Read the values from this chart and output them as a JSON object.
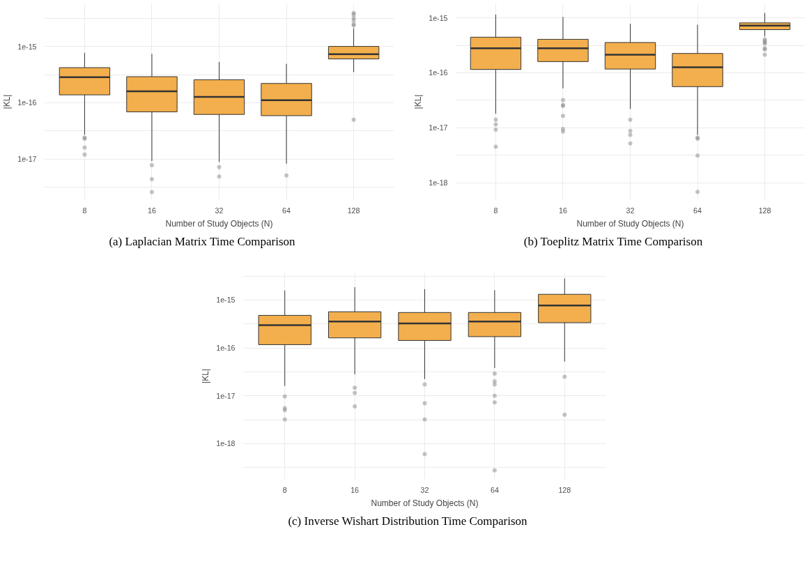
{
  "chart_data": [
    {
      "type": "box",
      "categories": [
        "8",
        "16",
        "32",
        "64",
        "128"
      ],
      "xlabel": "Number of Study Objects (N)",
      "ylabel": "|KL|",
      "color": "#f3af4d",
      "log": true,
      "grid": true,
      "ylim": [
        1.9e-18,
        5.7e-15
      ],
      "yticks": [
        {
          "value": 3.16e-18,
          "label": null
        },
        {
          "value": 1e-17,
          "label": "1e-17"
        },
        {
          "value": 3.16e-17,
          "label": null
        },
        {
          "value": 1e-16,
          "label": "1e-16"
        },
        {
          "value": 3.16e-16,
          "label": null
        },
        {
          "value": 1e-15,
          "label": "1e-15"
        },
        {
          "value": 3.16e-15,
          "label": null
        }
      ],
      "boxes": [
        {
          "low": 2.7e-17,
          "q1": 1.38e-16,
          "median": 2.85e-16,
          "q3": 4.2e-16,
          "high": 7.7e-16,
          "outliers": [
            2.4e-17,
            2.3e-17,
            1.6e-17,
            1.2e-17
          ]
        },
        {
          "low": 9.2e-18,
          "q1": 6.9e-17,
          "median": 1.6e-16,
          "q3": 2.9e-16,
          "high": 7.4e-16,
          "outliers": [
            7.8e-18,
            4.4e-18,
            2.6e-18
          ]
        },
        {
          "low": 8.9e-18,
          "q1": 6.2e-17,
          "median": 1.27e-16,
          "q3": 2.56e-16,
          "high": 5.3e-16,
          "outliers": [
            7.2e-18,
            4.9e-18
          ]
        },
        {
          "low": 8.3e-18,
          "q1": 5.9e-17,
          "median": 1.11e-16,
          "q3": 2.2e-16,
          "high": 4.9e-16,
          "outliers": [
            5.1e-18
          ]
        },
        {
          "low": 3.5e-16,
          "q1": 6e-16,
          "median": 7.3e-16,
          "q3": 1e-15,
          "high": 2.1e-15,
          "outliers": [
            3.9e-15,
            3.7e-15,
            3.2e-15,
            2.9e-15,
            2.5e-15,
            2.35e-15,
            5e-17
          ]
        }
      ],
      "annotations": [
        "(a) Laplacian Matrix Time Comparison"
      ]
    },
    {
      "type": "box",
      "categories": [
        "8",
        "16",
        "32",
        "64",
        "128"
      ],
      "xlabel": "Number of Study Objects (N)",
      "ylabel": "|KL|",
      "color": "#f3af4d",
      "log": true,
      "grid": true,
      "ylim": [
        4.9e-19,
        1.8e-15
      ],
      "yticks": [
        {
          "value": 1e-18,
          "label": "1e-18"
        },
        {
          "value": 3.16e-18,
          "label": null
        },
        {
          "value": 1e-17,
          "label": "1e-17"
        },
        {
          "value": 3.16e-17,
          "label": null
        },
        {
          "value": 1e-16,
          "label": "1e-16"
        },
        {
          "value": 3.16e-16,
          "label": null
        },
        {
          "value": 1e-15,
          "label": "1e-15"
        }
      ],
      "boxes": [
        {
          "low": 1.8e-17,
          "q1": 1.15e-16,
          "median": 2.8e-16,
          "q3": 4.45e-16,
          "high": 1.15e-15,
          "outliers": [
            1.4e-17,
            1.15e-17,
            9.2e-18,
            4.5e-18
          ]
        },
        {
          "low": 5.2e-17,
          "q1": 1.6e-16,
          "median": 2.79e-16,
          "q3": 4.07e-16,
          "high": 1.04e-15,
          "outliers": [
            3.2e-17,
            2.6e-17,
            2.5e-17,
            1.64e-17,
            9.5e-18,
            8.5e-18
          ]
        },
        {
          "low": 2.2e-17,
          "q1": 1.17e-16,
          "median": 2.14e-16,
          "q3": 3.56e-16,
          "high": 7.8e-16,
          "outliers": [
            1.4e-17,
            8.8e-18,
            7.4e-18,
            5.2e-18
          ]
        },
        {
          "low": 7.4e-18,
          "q1": 5.6e-17,
          "median": 1.26e-16,
          "q3": 2.25e-16,
          "high": 7.5e-16,
          "outliers": [
            6.6e-18,
            6.3e-18,
            3.1e-18,
            6.8e-19
          ]
        },
        {
          "low": 4.6e-16,
          "q1": 6.1e-16,
          "median": 7.25e-16,
          "q3": 8.1e-16,
          "high": 1.23e-15,
          "outliers": [
            4.07e-16,
            3.8e-16,
            3.56e-16,
            3.4e-16,
            2.8e-16,
            2.65e-16,
            2.14e-16
          ]
        }
      ],
      "annotations": [
        "(b) Toeplitz Matrix Time Comparison"
      ]
    },
    {
      "type": "box",
      "categories": [
        "8",
        "16",
        "32",
        "64",
        "128"
      ],
      "xlabel": "Number of Study Objects (N)",
      "ylabel": "|KL|",
      "color": "#f3af4d",
      "log": true,
      "grid": true,
      "ylim": [
        1.8e-19,
        3.7e-15
      ],
      "yticks": [
        {
          "value": 3.16e-19,
          "label": null
        },
        {
          "value": 1e-18,
          "label": "1e-18"
        },
        {
          "value": 3.16e-18,
          "label": null
        },
        {
          "value": 1e-17,
          "label": "1e-17"
        },
        {
          "value": 3.16e-17,
          "label": null
        },
        {
          "value": 1e-16,
          "label": "1e-16"
        },
        {
          "value": 3.16e-16,
          "label": null
        },
        {
          "value": 1e-15,
          "label": "1e-15"
        },
        {
          "value": 3.16e-15,
          "label": null
        }
      ],
      "boxes": [
        {
          "low": 1.6e-17,
          "q1": 1.17e-16,
          "median": 2.98e-16,
          "q3": 4.79e-16,
          "high": 1.59e-15,
          "outliers": [
            9.7e-18,
            5.5e-18,
            5e-18,
            3.2e-18
          ]
        },
        {
          "low": 2.8e-17,
          "q1": 1.62e-16,
          "median": 3.55e-16,
          "q3": 5.7e-16,
          "high": 1.86e-15,
          "outliers": [
            1.47e-17,
            1.14e-17,
            6e-18
          ]
        },
        {
          "low": 2.24e-17,
          "q1": 1.43e-16,
          "median": 3.25e-16,
          "q3": 5.5e-16,
          "high": 1.69e-15,
          "outliers": [
            1.72e-17,
            7e-18,
            3.2e-18,
            6e-19
          ]
        },
        {
          "low": 3.8e-17,
          "q1": 1.72e-16,
          "median": 3.55e-16,
          "q3": 5.5e-16,
          "high": 1.61e-15,
          "outliers": [
            2.9e-17,
            2e-17,
            1.72e-17,
            1e-17,
            7.3e-18,
            2.76e-19
          ]
        },
        {
          "low": 5.2e-17,
          "q1": 3.37e-16,
          "median": 7.7e-16,
          "q3": 1.32e-15,
          "high": 2.82e-15,
          "outliers": [
            2.5e-17,
            4e-18
          ]
        }
      ],
      "annotations": [
        "(c) Inverse Wishart Distribution Time Comparison"
      ]
    }
  ]
}
